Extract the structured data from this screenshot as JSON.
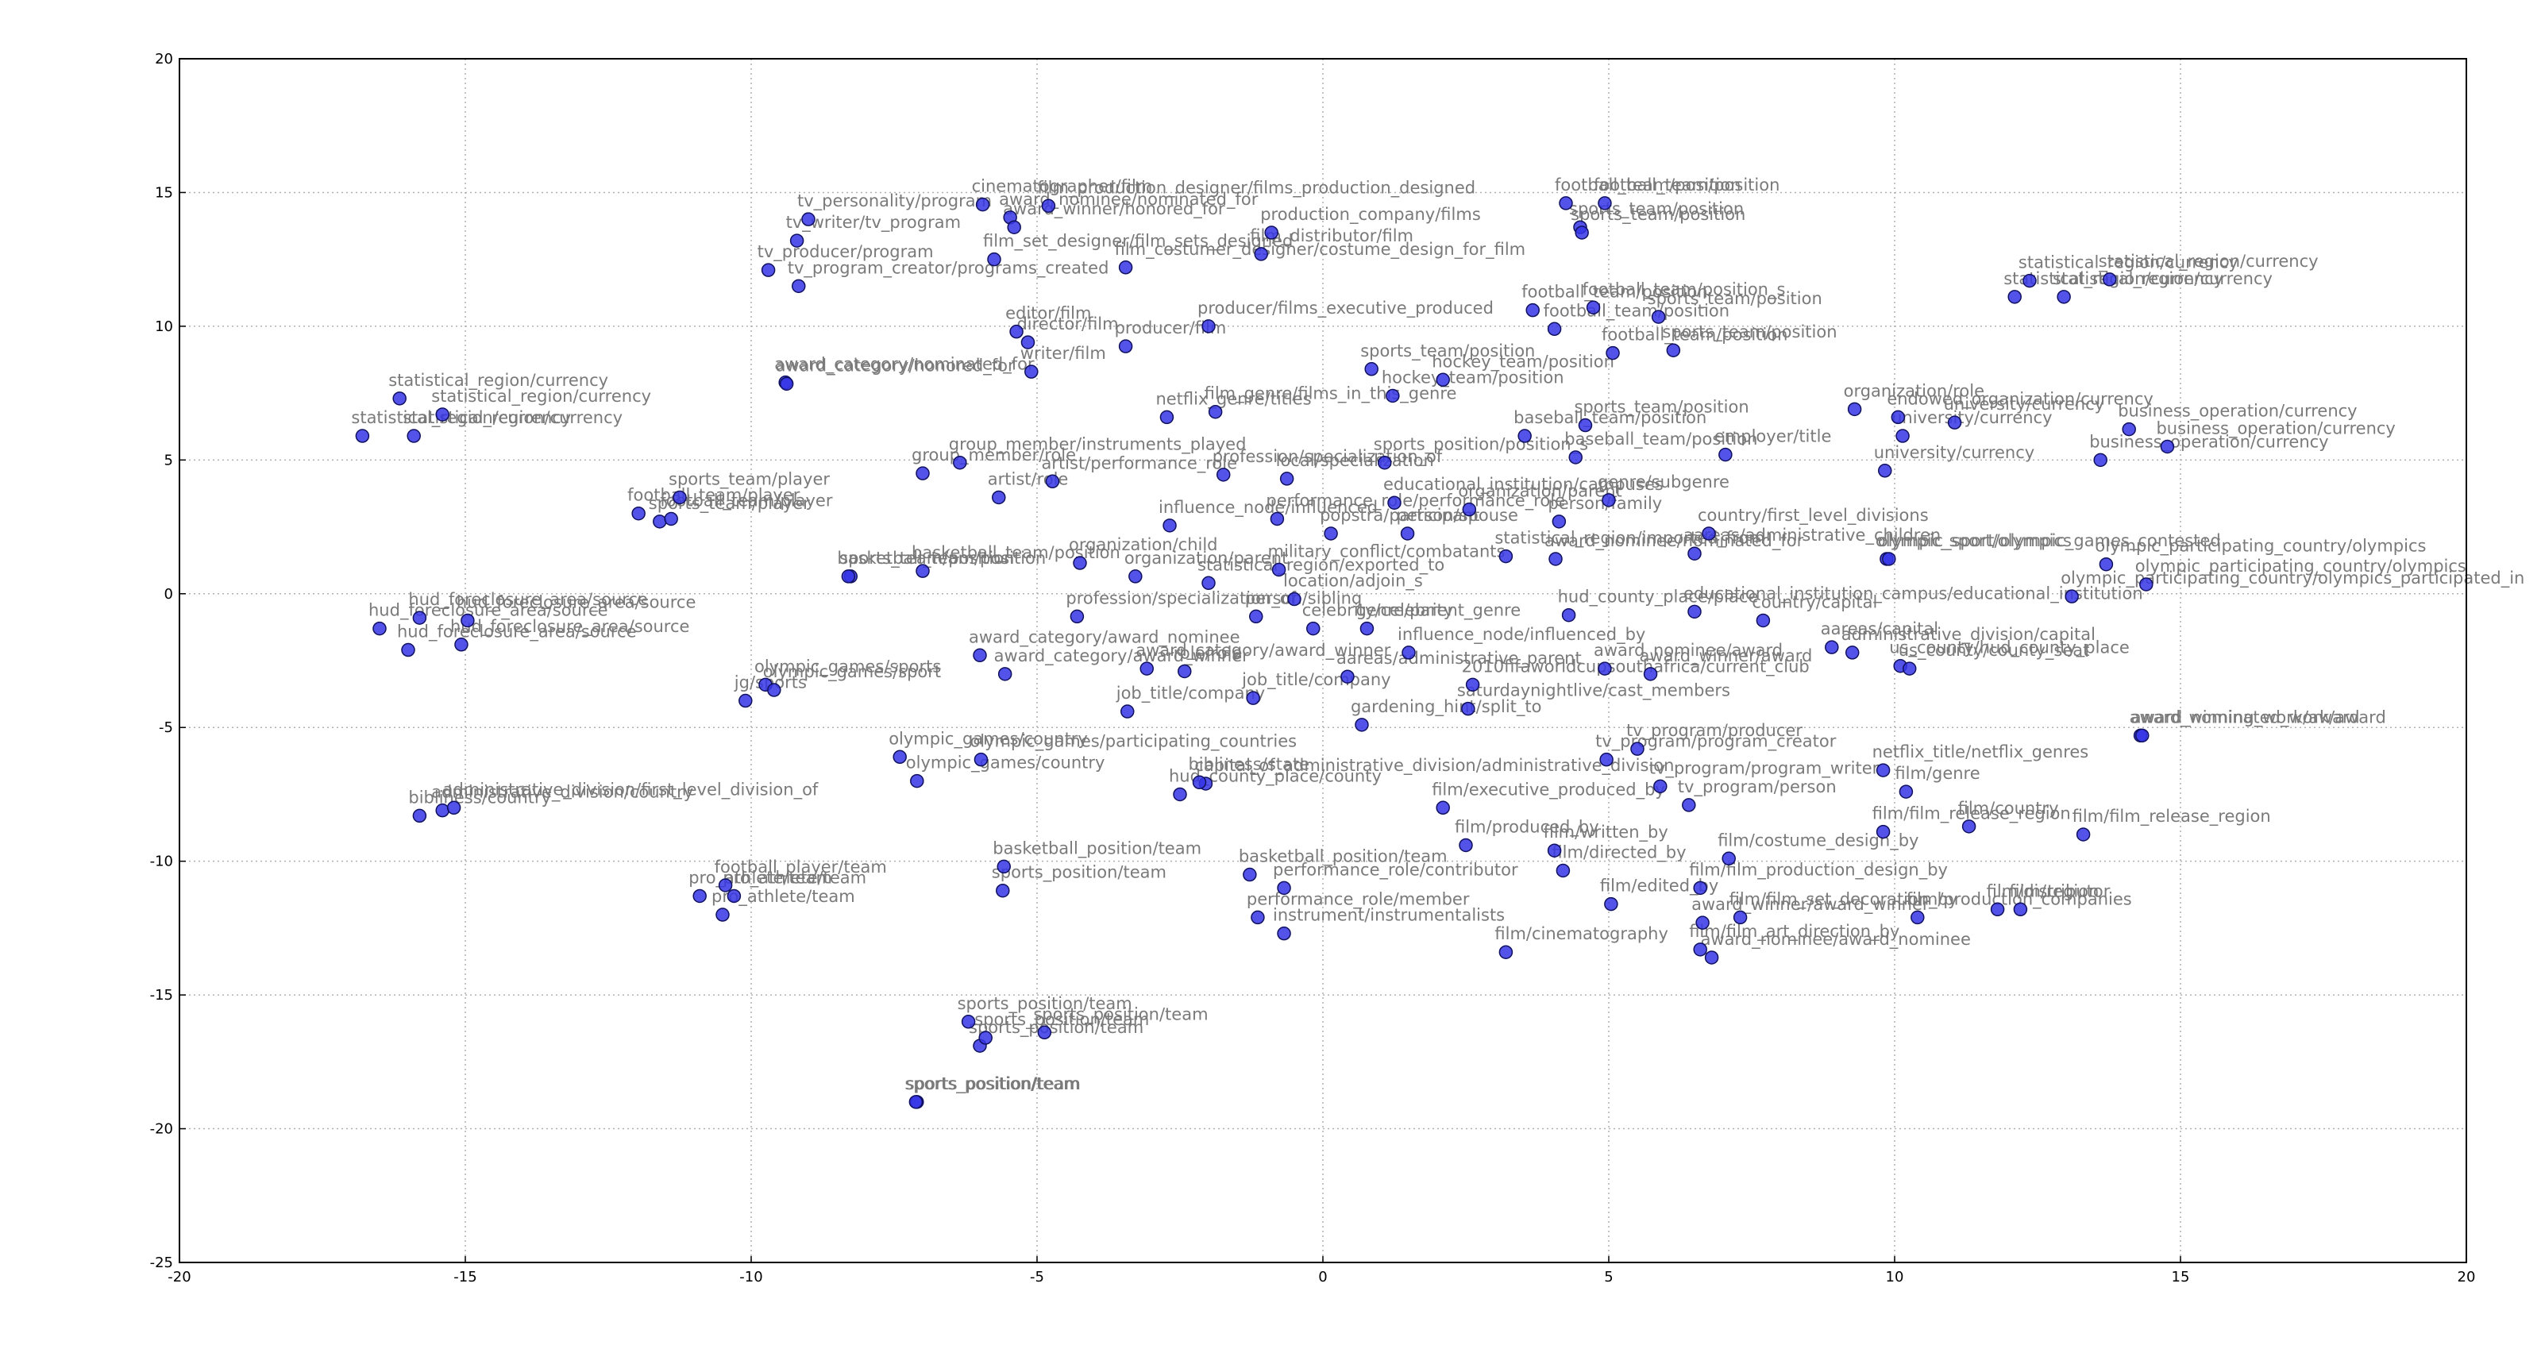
{
  "chart_data": {
    "type": "scatter",
    "color": "#3535e6",
    "grid": true,
    "xlim": [
      -20,
      20
    ],
    "ylim": [
      -25,
      20
    ],
    "xticks": [
      -20,
      -15,
      -10,
      -5,
      0,
      5,
      10,
      15,
      20
    ],
    "yticks": [
      -25,
      -20,
      -15,
      -10,
      -5,
      0,
      5,
      10,
      15,
      20
    ],
    "x": [
      -16.15,
      -16.8,
      -15.9,
      -15.4,
      -11.97,
      -11.6,
      -11.4,
      -11.25,
      -16.5,
      -16.0,
      -15.8,
      -15.07,
      -14.96,
      -15.8,
      -15.4,
      -15.2,
      -10.9,
      -10.45,
      -10.3,
      -10.5,
      -10.1,
      -9.75,
      -9.6,
      -7.4,
      -7.1,
      -5.98,
      -9.4,
      -9.38,
      -9.7,
      -9.17,
      -9.2,
      -9.0,
      -5.95,
      -5.47,
      -5.4,
      -4.8,
      -5.75,
      -3.45,
      -0.9,
      -1.08,
      -5.36,
      -5.16,
      -5.1,
      -3.45,
      -2.0,
      -7.0,
      -6.35,
      -5.67,
      -4.73,
      -2.73,
      -1.88,
      -1.74,
      -0.63,
      1.08,
      0.85,
      2.1,
      1.22,
      4.25,
      4.93,
      4.5,
      4.53,
      3.67,
      4.73,
      4.05,
      5.87,
      5.07,
      6.13,
      3.53,
      4.59,
      4.42,
      7.04,
      9.3,
      10.06,
      10.14,
      11.05,
      9.83,
      12.1,
      12.36,
      12.96,
      13.76,
      13.6,
      14.1,
      14.77,
      9.86,
      9.9,
      13.7,
      13.1,
      14.4,
      7.7,
      8.9,
      9.26,
      10.1,
      10.26,
      14.3,
      14.33,
      9.8,
      10.2,
      9.8,
      11.3,
      13.3,
      10.4,
      11.8,
      12.2,
      7.1,
      6.6,
      7.3,
      6.6,
      6.8,
      6.64,
      5.04,
      4.2,
      4.05,
      2.5,
      2.1,
      3.2,
      6.4,
      5.9,
      5.5,
      4.96,
      0.68,
      2.54,
      5.73,
      4.93,
      2.62,
      1.5,
      0.43,
      -1.22,
      -3.42,
      -2.42,
      -3.08,
      -6.0,
      -5.56,
      -4.3,
      -2.0,
      -1.17,
      -0.17,
      0.77,
      -0.5,
      -8.26,
      -8.3,
      -7.0,
      -4.25,
      -3.28,
      -2.68,
      -0.8,
      -0.77,
      0.14,
      1.25,
      1.48,
      2.56,
      3.2,
      4.13,
      6.75,
      4.07,
      6.5,
      4.3,
      -2.05,
      -2.16,
      -2.5,
      -0.68,
      -1.28,
      -1.14,
      -0.68,
      -5.58,
      -5.6,
      -6.2,
      -6.0,
      -5.9,
      -4.87,
      -7.1,
      -7.12,
      6.5,
      5.0
    ],
    "values": [
      7.3,
      5.9,
      5.9,
      6.7,
      3.0,
      2.7,
      2.8,
      3.6,
      -1.3,
      -2.1,
      -0.9,
      -1.9,
      -1.0,
      -8.3,
      -8.1,
      -8.0,
      -11.3,
      -10.9,
      -11.3,
      -12.0,
      -4.0,
      -3.4,
      -3.6,
      -6.1,
      -7.0,
      -6.2,
      7.9,
      7.85,
      12.1,
      11.5,
      13.2,
      14.0,
      14.55,
      14.07,
      13.7,
      14.5,
      12.5,
      12.2,
      13.5,
      12.7,
      9.8,
      9.4,
      8.3,
      9.25,
      10.0,
      4.5,
      4.9,
      3.6,
      4.2,
      6.6,
      6.8,
      4.45,
      4.3,
      4.9,
      8.4,
      8.0,
      7.4,
      14.6,
      14.6,
      13.7,
      13.5,
      10.6,
      10.7,
      9.9,
      10.35,
      9.0,
      9.1,
      5.9,
      6.3,
      5.1,
      5.2,
      6.9,
      6.6,
      5.9,
      6.4,
      4.6,
      11.1,
      11.7,
      11.1,
      11.75,
      5.0,
      6.15,
      5.5,
      1.3,
      1.3,
      1.1,
      -0.1,
      0.35,
      -1.0,
      -2.0,
      -2.2,
      -2.7,
      -2.8,
      -5.3,
      -5.3,
      -6.6,
      -7.4,
      -8.9,
      -8.7,
      -9.0,
      -12.1,
      -11.8,
      -11.8,
      -9.9,
      -11.0,
      -12.1,
      -13.3,
      -13.6,
      -12.3,
      -11.6,
      -10.35,
      -9.6,
      -9.4,
      -8.0,
      -13.4,
      -7.9,
      -7.2,
      -5.8,
      -6.2,
      -4.9,
      -4.3,
      -3.0,
      -2.8,
      -3.4,
      -2.2,
      -3.1,
      -3.9,
      -4.4,
      -2.9,
      -2.8,
      -2.3,
      -3.0,
      -0.85,
      0.4,
      -0.85,
      -1.3,
      -1.3,
      -0.2,
      0.65,
      0.65,
      0.85,
      1.15,
      0.65,
      2.55,
      2.8,
      0.9,
      2.25,
      3.4,
      2.25,
      3.15,
      1.4,
      2.7,
      2.25,
      1.3,
      -0.67,
      -0.8,
      -7.1,
      -7.05,
      -7.5,
      -11.0,
      -10.5,
      -12.1,
      -12.7,
      -10.2,
      -11.1,
      -16.0,
      -16.9,
      -16.6,
      -16.4,
      -19.0,
      -19.0,
      1.5,
      3.5
    ],
    "labels": [
      "statistical_region/currency",
      "statistical_region/currency",
      "statistical_region/currency",
      "statistical_region/currency",
      "football_team/player",
      "sports_team/player",
      "football_team/player",
      "sports_team/player",
      "hud_foreclosure_area/source",
      "hud_foreclosure_area/source",
      "hud_foreclosure_area/source",
      "hud_foreclosure_area/source",
      "hud_foreclosure_area/source",
      "bibliness/country",
      "administrative_division/country",
      "administrative_division/first_level_division_of",
      "pro_athlete/team",
      "football_player/team",
      "pro_athlete/team",
      "pro_athlete/team",
      "jg/sports",
      "olympic_games/sports",
      "olympic_games/sport",
      "olympic_games/country",
      "olympic_games/country",
      "olympic_games/participating_countries",
      "award_category/nominated_for",
      "award_category/honored_for",
      "tv_producer/program",
      "tv_program_creator/programs_created",
      "tv_writer/tv_program",
      "tv_personality/program",
      "cinematographer/film",
      "award_nominee/nominated_for",
      "award_winner/honored_for",
      "film_production_designer/films_production_designed",
      "film_set_designer/film_sets_designed",
      "film_costumer_designer/costume_design_for_film",
      "production_company/films",
      "film_distributor/film",
      "editor/film",
      "director/film",
      "writer/film",
      "producer/film",
      "producer/films_executive_produced",
      "group_member/role",
      "group_member/instruments_played",
      "artist/role",
      "artist/performance_role",
      "netflix_genre/titles",
      "film_genre/films_in_this_genre",
      "profession/specialization_of",
      "local/specialization",
      "sports_position/position_s",
      "sports_team/position",
      "hockey_team/position",
      "hockey_team/position",
      "football_team/position",
      "football_team/position",
      "sports_team/position",
      "sports_team/position",
      "football_team/position",
      "football_team/position_s",
      "football_team/position",
      "sports_team/position",
      "football_team/position",
      "sports_team/position",
      "baseball_team/position",
      "sports_team/position",
      "baseball_team/position",
      "employer/title",
      "organization/role",
      "endowed_organization/currency",
      "university/currency",
      "university/currency",
      "university/currency",
      "statistical_region/currency",
      "statistical_region/currency",
      "statistical_region/currency",
      "statistical_region/currency",
      "business_operation/currency",
      "business_operation/currency",
      "business_operation/currency",
      "olympic_sport/olympics",
      "olympic_sport/olympic_games_contested",
      "olympic_participating_country/olympics",
      "olympic_participating_country/olympics_participated_in",
      "olympic_participating_country/olympics",
      "country/capital",
      "aareas/capital",
      "administrative_division/capital",
      "us_county/hud_county_place",
      "us_county/county_seat",
      "award_winning_work/award",
      "award_nominated_work/award",
      "netflix_title/netflix_genres",
      "film/genre",
      "film/film_release_region",
      "film/country",
      "film/film_release_region",
      "film/production_companies",
      "film/distributor",
      "film/region",
      "film/costume_design_by",
      "film/film_production_design_by",
      "film/film_set_decoration_by",
      "film/film_art_direction_by",
      "award_nominee/award_nominee",
      "award_winner/award_winner",
      "film/edited_by",
      "film/directed_by",
      "film/written_by",
      "film/produced_by",
      "film/executive_produced_by",
      "film/cinematography",
      "tv_program/person",
      "tv_program/program_writer",
      "tv_program/producer",
      "tv_program/program_creator",
      "gardening_hint/split_to",
      "saturdaynightlive/cast_members",
      "award_winner/award",
      "award_nominee/award",
      "2010fifaworldcupsouthafrica/current_club",
      "influence_node/influenced_by",
      "aareas/administrative_parent",
      "job_title/company",
      "job_title/company",
      "role/role",
      "award_category/award_winner",
      "award_category/award_nominee",
      "award_category/award_winner",
      "profession/specialization_of",
      "statistical_region/exported_to",
      "person/sibling",
      "celebrity/celebrity",
      "genre/parent_genre",
      "location/adjoin_s",
      "sports_team/position",
      "basketball_team/position",
      "basketball_team/position",
      "organization/child",
      "organization/parent",
      "influence_node/influenced",
      "performance_role/performance_role",
      "military_conflict/combatants",
      "popstra/participant",
      "educational_institution/campuses",
      "person/spouse",
      "organization/parent",
      "statistical_region/imported_from",
      "person/family",
      "country/first_level_divisions",
      "award_nominee/nominated_for",
      "educational_institution_campus/educational_institution",
      "hud_county_place/place",
      "capital_of_administrative_division/administrative_division",
      "bibliness/state",
      "hud_county_place/county",
      "performance_role/contributor",
      "basketball_position/team",
      "performance_role/member",
      "instrument/instrumentalists",
      "basketball_position/team",
      "sports_position/team",
      "sports_position/team",
      "sports_position/team",
      "sports_position/team",
      "sports_position/team",
      "sports_position/team",
      "sports_position/team",
      "aareas/administrative_children",
      "genre/subgenre"
    ]
  }
}
